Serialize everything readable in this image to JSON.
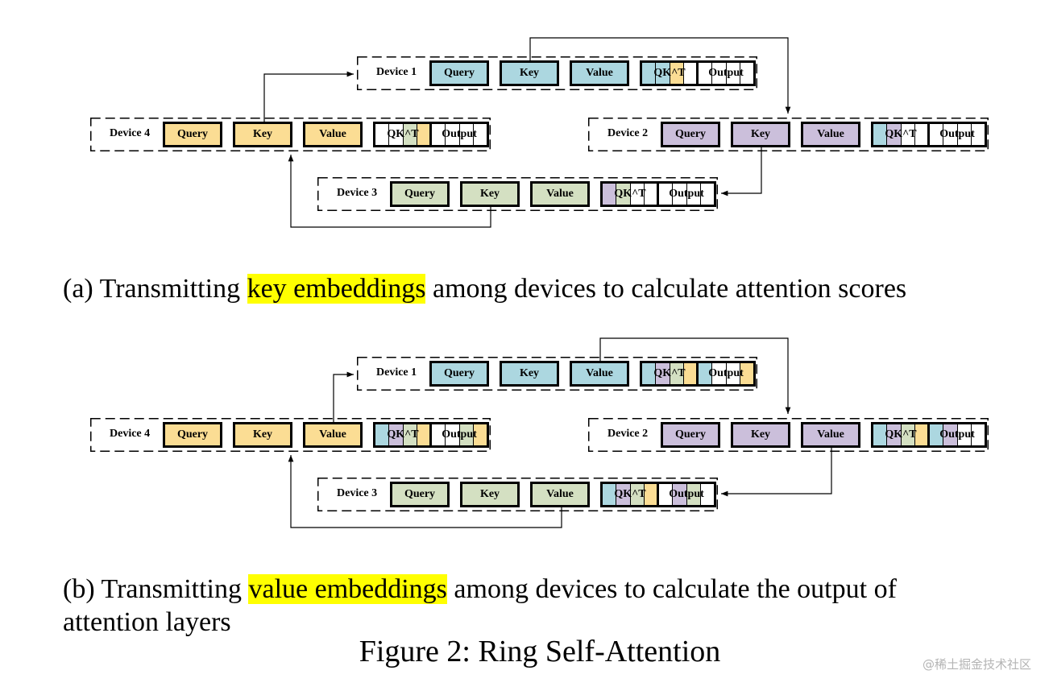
{
  "colors": {
    "device1": "#acd7e0",
    "device2": "#cbbfdb",
    "device3": "#d4e0c2",
    "device4": "#fbdd94",
    "highlight": "#ffff00"
  },
  "box_labels": {
    "query": "Query",
    "key": "Key",
    "value": "Value",
    "qkt": "QK^T",
    "output": "Output"
  },
  "diagram_a": {
    "devices": [
      {
        "label": "Device 1",
        "qkt_fill": [
          "device1",
          "device1",
          "device4",
          "white"
        ],
        "output_fill": [
          "white",
          "white",
          "white",
          "white"
        ]
      },
      {
        "label": "Device 2",
        "qkt_fill": [
          "device1",
          "device2",
          "white",
          "white"
        ],
        "output_fill": [
          "white",
          "white",
          "white",
          "white"
        ]
      },
      {
        "label": "Device 3",
        "qkt_fill": [
          "device2",
          "device3",
          "white",
          "white"
        ],
        "output_fill": [
          "white",
          "white",
          "white",
          "white"
        ]
      },
      {
        "label": "Device 4",
        "qkt_fill": [
          "white",
          "white",
          "device3",
          "device4"
        ],
        "output_fill": [
          "white",
          "white",
          "white",
          "white"
        ]
      }
    ],
    "caption": {
      "prefix": "(a) Transmitting ",
      "highlight": "key embeddings",
      "suffix": " among devices to calculate attention scores"
    }
  },
  "diagram_b": {
    "devices": [
      {
        "label": "Device 1",
        "qkt_fill": [
          "device1",
          "device2",
          "device3",
          "device4"
        ],
        "output_fill": [
          "device1",
          "white",
          "white",
          "device4"
        ]
      },
      {
        "label": "Device 2",
        "qkt_fill": [
          "device1",
          "device2",
          "device3",
          "device4"
        ],
        "output_fill": [
          "device1",
          "device2",
          "white",
          "white"
        ]
      },
      {
        "label": "Device 3",
        "qkt_fill": [
          "device1",
          "device2",
          "device3",
          "device4"
        ],
        "output_fill": [
          "white",
          "device2",
          "device3",
          "white"
        ]
      },
      {
        "label": "Device 4",
        "qkt_fill": [
          "device1",
          "device2",
          "device3",
          "device4"
        ],
        "output_fill": [
          "white",
          "white",
          "device3",
          "device4"
        ]
      }
    ],
    "caption": {
      "prefix": "(b) Transmitting ",
      "highlight": "value embeddings",
      "suffix": " among devices to calculate the output of",
      "line2": "attention layers"
    }
  },
  "figure_caption": "Figure 2: Ring Self-Attention",
  "watermark": "@稀土掘金技术社区"
}
